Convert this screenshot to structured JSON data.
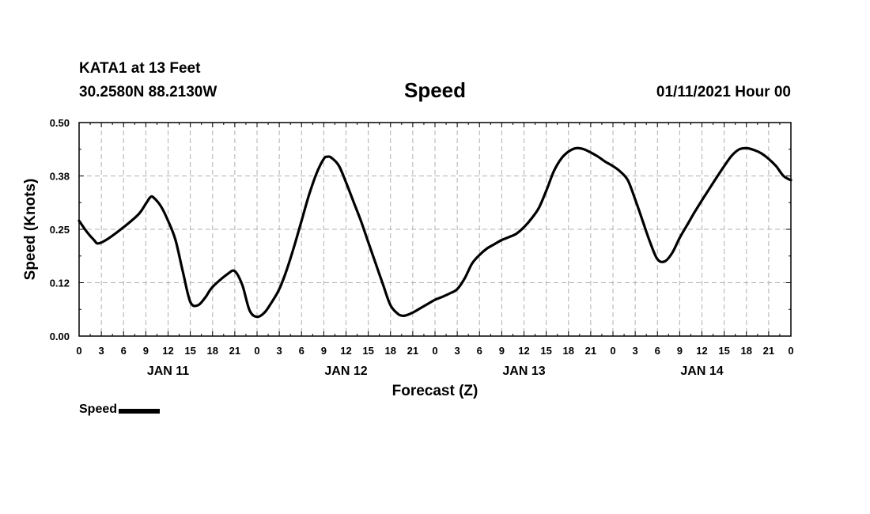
{
  "header": {
    "station": "KATA1 at 13 Feet",
    "coords": "30.2580N 88.2130W",
    "run": "01/11/2021 Hour 00"
  },
  "chart_data": {
    "type": "line",
    "title": "Speed",
    "xlabel": "Forecast (Z)",
    "ylabel": "Speed (Knots)",
    "xlim": [
      0,
      96
    ],
    "ylim": [
      0,
      0.5
    ],
    "y_ticks": [
      "0.00",
      "0.12",
      "0.25",
      "0.38",
      "0.50"
    ],
    "x_ticks": [
      "0",
      "3",
      "6",
      "9",
      "12",
      "15",
      "18",
      "21",
      "0",
      "3",
      "6",
      "9",
      "12",
      "15",
      "18",
      "21",
      "0",
      "3",
      "6",
      "9",
      "12",
      "15",
      "18",
      "21",
      "0",
      "3",
      "6",
      "9",
      "12",
      "15",
      "18",
      "21",
      "0"
    ],
    "day_labels": [
      {
        "label": "JAN 11",
        "hour": 12
      },
      {
        "label": "JAN 12",
        "hour": 36
      },
      {
        "label": "JAN 13",
        "hour": 60
      },
      {
        "label": "JAN 14",
        "hour": 84
      }
    ],
    "grid": true,
    "legend": "bottom-left",
    "series": [
      {
        "name": "Speed",
        "color": "#000000",
        "x": [
          0,
          1,
          2,
          2.6,
          4,
          6,
          8,
          9,
          9.6,
          10,
          11,
          12,
          13,
          14,
          15,
          16,
          17,
          18,
          20,
          21,
          22,
          23,
          24,
          25,
          26,
          27,
          28,
          29,
          30,
          31,
          32,
          33,
          33.5,
          34,
          35,
          36,
          37,
          38,
          39,
          40,
          41,
          42,
          43,
          43.5,
          44,
          45,
          46,
          47,
          48,
          49,
          50,
          51,
          52,
          53,
          54,
          55,
          56,
          57,
          58,
          59,
          60,
          61,
          62,
          63,
          64,
          65,
          66,
          67,
          68,
          69,
          70,
          71,
          72,
          73,
          74,
          75,
          76,
          77,
          78,
          79,
          80,
          81,
          82,
          83,
          84,
          85,
          86,
          87,
          88,
          89,
          90,
          91,
          92,
          93,
          94,
          95,
          96
        ],
        "y": [
          0.27,
          0.245,
          0.225,
          0.217,
          0.229,
          0.255,
          0.285,
          0.31,
          0.325,
          0.325,
          0.305,
          0.27,
          0.225,
          0.15,
          0.08,
          0.072,
          0.09,
          0.115,
          0.145,
          0.152,
          0.12,
          0.06,
          0.045,
          0.055,
          0.08,
          0.11,
          0.155,
          0.21,
          0.27,
          0.33,
          0.38,
          0.415,
          0.42,
          0.418,
          0.4,
          0.36,
          0.315,
          0.27,
          0.22,
          0.17,
          0.12,
          0.072,
          0.052,
          0.048,
          0.048,
          0.055,
          0.065,
          0.075,
          0.085,
          0.092,
          0.1,
          0.11,
          0.135,
          0.17,
          0.19,
          0.205,
          0.215,
          0.225,
          0.232,
          0.24,
          0.255,
          0.275,
          0.3,
          0.34,
          0.385,
          0.415,
          0.432,
          0.44,
          0.438,
          0.43,
          0.42,
          0.408,
          0.398,
          0.385,
          0.365,
          0.32,
          0.27,
          0.22,
          0.18,
          0.175,
          0.195,
          0.23,
          0.26,
          0.29,
          0.318,
          0.345,
          0.372,
          0.398,
          0.422,
          0.437,
          0.44,
          0.436,
          0.428,
          0.415,
          0.398,
          0.375,
          0.365
        ]
      }
    ]
  }
}
